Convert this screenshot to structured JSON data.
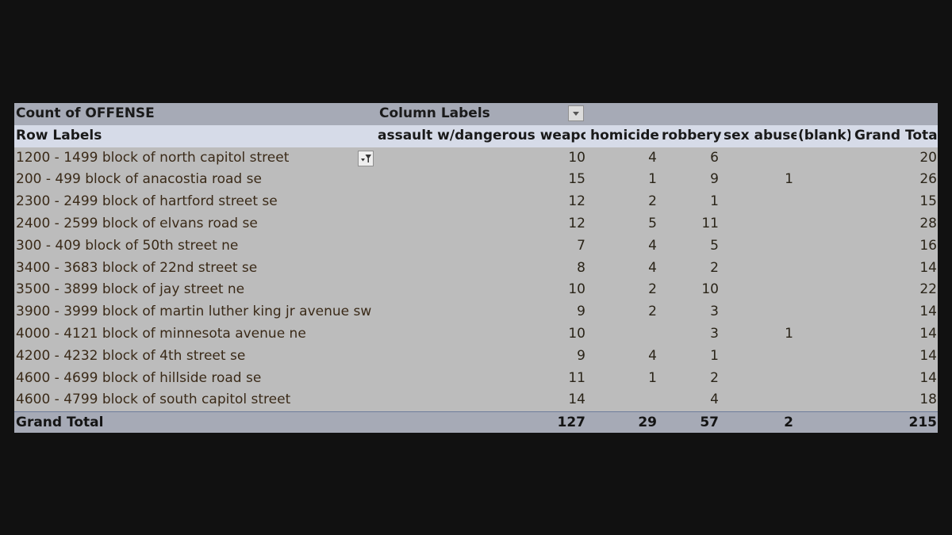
{
  "pivot": {
    "title": "Count of OFFENSE",
    "column_labels_header": "Column Labels",
    "row_labels_header": "Row Labels",
    "columns": [
      "assault w/dangerous weapon",
      "homicide",
      "robbery",
      "sex abuse",
      "(blank)",
      "Grand Total"
    ],
    "rows": [
      {
        "label": "1200 - 1499 block of north capitol street",
        "aw": "10",
        "ho": "4",
        "ro": "6",
        "sa": "",
        "bl": "",
        "gt": "20"
      },
      {
        "label": "200 - 499 block of anacostia road se",
        "aw": "15",
        "ho": "1",
        "ro": "9",
        "sa": "1",
        "bl": "",
        "gt": "26"
      },
      {
        "label": "2300 - 2499 block of hartford street se",
        "aw": "12",
        "ho": "2",
        "ro": "1",
        "sa": "",
        "bl": "",
        "gt": "15"
      },
      {
        "label": "2400 - 2599 block of elvans road se",
        "aw": "12",
        "ho": "5",
        "ro": "11",
        "sa": "",
        "bl": "",
        "gt": "28"
      },
      {
        "label": "300 - 409 block of 50th street ne",
        "aw": "7",
        "ho": "4",
        "ro": "5",
        "sa": "",
        "bl": "",
        "gt": "16"
      },
      {
        "label": "3400 - 3683 block of 22nd street se",
        "aw": "8",
        "ho": "4",
        "ro": "2",
        "sa": "",
        "bl": "",
        "gt": "14"
      },
      {
        "label": "3500 - 3899 block of jay street ne",
        "aw": "10",
        "ho": "2",
        "ro": "10",
        "sa": "",
        "bl": "",
        "gt": "22"
      },
      {
        "label": "3900 - 3999 block of martin luther king jr avenue sw",
        "aw": "9",
        "ho": "2",
        "ro": "3",
        "sa": "",
        "bl": "",
        "gt": "14"
      },
      {
        "label": "4000 - 4121 block of minnesota avenue ne",
        "aw": "10",
        "ho": "",
        "ro": "3",
        "sa": "1",
        "bl": "",
        "gt": "14"
      },
      {
        "label": "4200 - 4232 block of 4th street se",
        "aw": "9",
        "ho": "4",
        "ro": "1",
        "sa": "",
        "bl": "",
        "gt": "14"
      },
      {
        "label": "4600 - 4699 block of hillside road se",
        "aw": "11",
        "ho": "1",
        "ro": "2",
        "sa": "",
        "bl": "",
        "gt": "14"
      },
      {
        "label": "4600 - 4799 block of south capitol street",
        "aw": "14",
        "ho": "",
        "ro": "4",
        "sa": "",
        "bl": "",
        "gt": "18"
      }
    ],
    "grand_total": {
      "label": "Grand Total",
      "aw": "127",
      "ho": "29",
      "ro": "57",
      "sa": "2",
      "bl": "",
      "gt": "215"
    },
    "icons": {
      "column_filter": "dropdown-arrow-icon",
      "row_filter": "filter-dropdown-icon"
    },
    "colors": {
      "background": "#111111",
      "sheet": "#bcbcbc",
      "header_band": "#a6aab6",
      "row_labels_band": "#d6dbe8"
    }
  }
}
